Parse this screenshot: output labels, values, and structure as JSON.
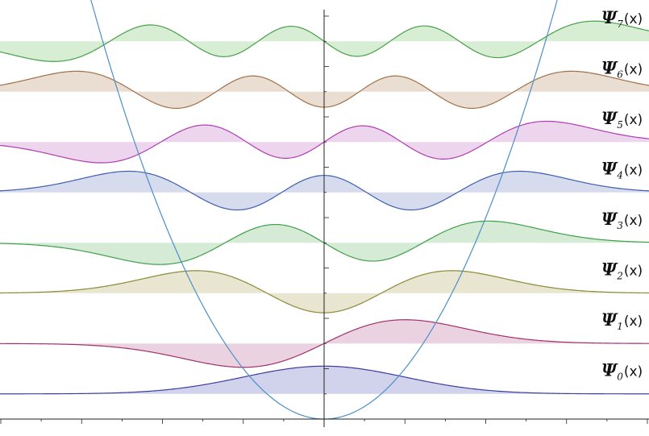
{
  "chart_data": {
    "type": "line",
    "title": "",
    "xlabel": "",
    "ylabel": "",
    "xlim": [
      -4.02,
      4.02
    ],
    "ylim": [
      -0.2,
      10.05
    ],
    "grid": false,
    "legend": "none",
    "potential": {
      "name": "",
      "formula": "V(x) = x^2",
      "color": "#4c8fc8"
    },
    "series": [
      {
        "n": 0,
        "label": "Ψ",
        "subscript": "0",
        "arg": "(x)",
        "offset": 0.5,
        "color": "#3e3e9e",
        "fill": "#cfd0ea"
      },
      {
        "n": 1,
        "label": "Ψ",
        "subscript": "1",
        "arg": "(x)",
        "offset": 1.5,
        "color": "#a0306e",
        "fill": "#ead0de"
      },
      {
        "n": 2,
        "label": "Ψ",
        "subscript": "2",
        "arg": "(x)",
        "offset": 2.5,
        "color": "#8a8a38",
        "fill": "#e7e4cf"
      },
      {
        "n": 3,
        "label": "Ψ",
        "subscript": "3",
        "arg": "(x)",
        "offset": 3.5,
        "color": "#3f9f4a",
        "fill": "#d3ead3"
      },
      {
        "n": 4,
        "label": "Ψ",
        "subscript": "4",
        "arg": "(x)",
        "offset": 4.5,
        "color": "#3c5fae",
        "fill": "#d4d9ec"
      },
      {
        "n": 5,
        "label": "Ψ",
        "subscript": "5",
        "arg": "(x)",
        "offset": 5.5,
        "color": "#b03cb0",
        "fill": "#ecd3ec"
      },
      {
        "n": 6,
        "label": "Ψ",
        "subscript": "6",
        "arg": "(x)",
        "offset": 6.5,
        "color": "#a0704a",
        "fill": "#e9dbd0"
      },
      {
        "n": 7,
        "label": "Ψ",
        "subscript": "7",
        "arg": "(x)",
        "offset": 7.5,
        "color": "#48a048",
        "fill": "#d5ecd2"
      }
    ],
    "x_ticks": [
      -4,
      -3,
      -2,
      -1,
      0,
      1,
      2,
      3,
      4
    ],
    "y_ticks": [
      0,
      1,
      2,
      3,
      4,
      5,
      6,
      7,
      8
    ]
  }
}
